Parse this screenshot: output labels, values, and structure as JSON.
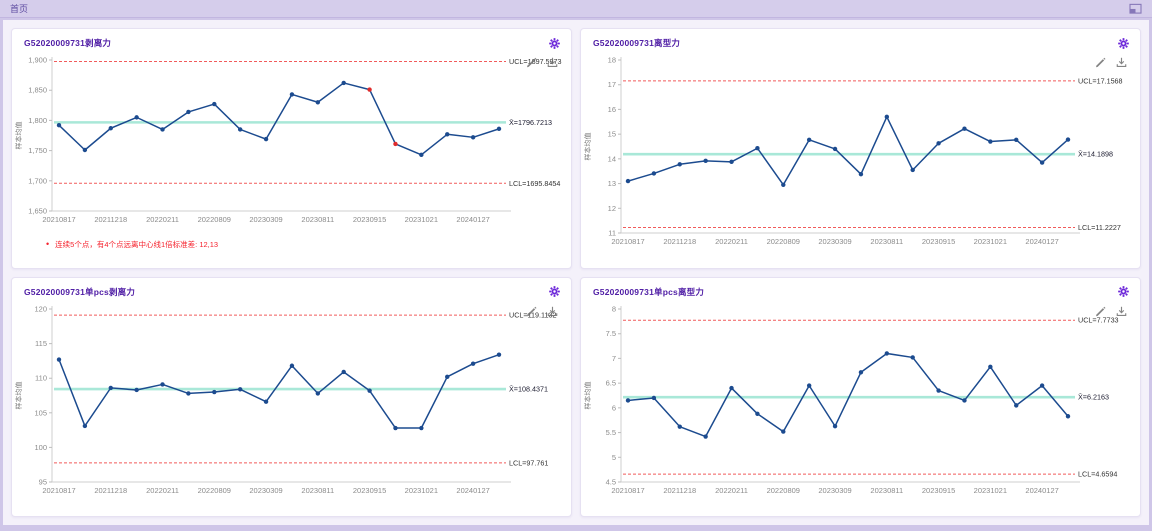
{
  "header": {
    "title": "首页"
  },
  "colors": {
    "accent": "#5b21a8",
    "gear": "#6d28d9",
    "series": "#1c4b8f",
    "outlier": "#e02b2b",
    "center_line": "#a9e8d8",
    "limit_line": "#f15b5b",
    "axis": "#cfcfcf",
    "tick_text": "#8b8b8b",
    "limit_text": "#333333",
    "center_text": "#1a1a2e",
    "note": "#f5222d"
  },
  "chart_data": [
    {
      "type": "line",
      "title": "G52020009731剥离力",
      "ylabel": "样本均值",
      "x_labels": [
        "20210817",
        "20211218",
        "20220211",
        "20220809",
        "20230309",
        "20230811",
        "20230915",
        "20231021",
        "20240127"
      ],
      "values": [
        1792,
        1751,
        1787,
        1805,
        1785,
        1814,
        1827,
        1785,
        1769,
        1843,
        1830,
        1862,
        1851,
        1761,
        1743,
        1777,
        1772,
        1786
      ],
      "outlier_indices": [
        12,
        13
      ],
      "ucl": {
        "value": 1897.5973,
        "label": "UCL=1897.5973"
      },
      "center": {
        "value": 1796.7213,
        "label": "X̄=1796.7213"
      },
      "lcl": {
        "value": 1695.8454,
        "label": "LCL=1695.8454"
      },
      "ylim": [
        1650,
        1900
      ],
      "yticks": {
        "values": [
          1650,
          1700,
          1750,
          1800,
          1850,
          1900
        ],
        "labels": [
          "1,650",
          "1,700",
          "1,750",
          "1,800",
          "1,850",
          "1,900"
        ]
      },
      "grid": false,
      "note": "连续5个点，有4个点远离中心线1倍标准差: 12,13"
    },
    {
      "type": "line",
      "title": "G52020009731离型力",
      "ylabel": "样本均值",
      "x_labels": [
        "20210817",
        "20211218",
        "20220211",
        "20220809",
        "20230309",
        "20230811",
        "20230915",
        "20231021",
        "20240127"
      ],
      "values": [
        13.1,
        13.41,
        13.78,
        13.92,
        13.88,
        14.43,
        12.95,
        14.77,
        14.4,
        13.38,
        15.7,
        13.55,
        14.63,
        15.22,
        14.7,
        14.77,
        13.85,
        14.78
      ],
      "outlier_indices": [],
      "ucl": {
        "value": 17.1568,
        "label": "UCL=17.1568"
      },
      "center": {
        "value": 14.1898,
        "label": "X̄=14.1898"
      },
      "lcl": {
        "value": 11.2227,
        "label": "LCL=11.2227"
      },
      "ylim": [
        11,
        18
      ],
      "yticks": {
        "values": [
          11,
          12,
          13,
          14,
          15,
          16,
          17,
          18
        ],
        "labels": [
          "11",
          "12",
          "13",
          "14",
          "15",
          "16",
          "17",
          "18"
        ]
      },
      "grid": false,
      "note": ""
    },
    {
      "type": "line",
      "title": "G52020009731单pcs剥离力",
      "ylabel": "样本均值",
      "x_labels": [
        "20210817",
        "20211218",
        "20220211",
        "20220809",
        "20230309",
        "20230811",
        "20230915",
        "20231021",
        "20240127"
      ],
      "values": [
        112.7,
        103.1,
        108.6,
        108.3,
        109.1,
        107.8,
        108.0,
        108.4,
        106.6,
        111.8,
        107.8,
        110.9,
        108.2,
        102.8,
        102.8,
        110.2,
        112.1,
        113.4
      ],
      "outlier_indices": [],
      "ucl": {
        "value": 119.1132,
        "label": "UCL=119.1132"
      },
      "center": {
        "value": 108.4371,
        "label": "X̄=108.4371"
      },
      "lcl": {
        "value": 97.761,
        "label": "LCL=97.761"
      },
      "ylim": [
        95,
        120
      ],
      "yticks": {
        "values": [
          95,
          100,
          105,
          110,
          115,
          120
        ],
        "labels": [
          "95",
          "100",
          "105",
          "110",
          "115",
          "120"
        ]
      },
      "grid": false,
      "note": ""
    },
    {
      "type": "line",
      "title": "G52020009731单pcs离型力",
      "ylabel": "样本均值",
      "x_labels": [
        "20210817",
        "20211218",
        "20220211",
        "20220809",
        "20230309",
        "20230811",
        "20230915",
        "20231021",
        "20240127"
      ],
      "values": [
        6.15,
        6.2,
        5.62,
        5.42,
        6.4,
        5.88,
        5.52,
        6.45,
        5.63,
        6.72,
        7.1,
        7.02,
        6.35,
        6.15,
        6.83,
        6.05,
        6.45,
        5.83
      ],
      "outlier_indices": [],
      "ucl": {
        "value": 7.7733,
        "label": "UCL=7.7733"
      },
      "center": {
        "value": 6.2163,
        "label": "X̄=6.2163"
      },
      "lcl": {
        "value": 4.6594,
        "label": "LCL=4.6594"
      },
      "ylim": [
        4.5,
        8
      ],
      "yticks": {
        "values": [
          4.5,
          5,
          5.5,
          6,
          6.5,
          7,
          7.5,
          8
        ],
        "labels": [
          "4.5",
          "5",
          "5.5",
          "6",
          "6.5",
          "7",
          "7.5",
          "8"
        ]
      },
      "grid": false,
      "note": ""
    }
  ]
}
